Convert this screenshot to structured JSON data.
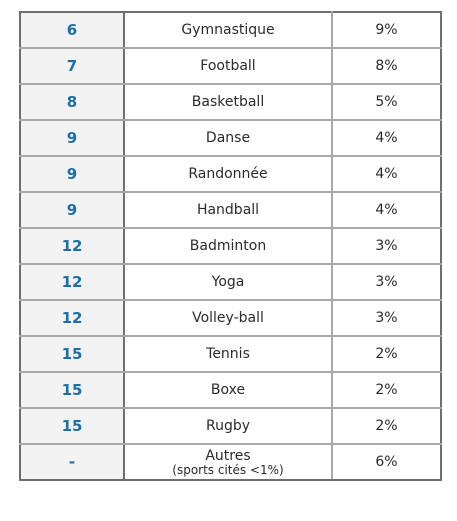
{
  "rows": [
    {
      "rank": "6",
      "sport": "Gymnastique",
      "pct": "9%"
    },
    {
      "rank": "7",
      "sport": "Football",
      "pct": "8%"
    },
    {
      "rank": "8",
      "sport": "Basketball",
      "pct": "5%"
    },
    {
      "rank": "9",
      "sport": "Danse",
      "pct": "4%"
    },
    {
      "rank": "9",
      "sport": "Randonnée",
      "pct": "4%"
    },
    {
      "rank": "9",
      "sport": "Handball",
      "pct": "4%"
    },
    {
      "rank": "12",
      "sport": "Badminton",
      "pct": "3%"
    },
    {
      "rank": "12",
      "sport": "Yoga",
      "pct": "3%"
    },
    {
      "rank": "12",
      "sport": "Volley-ball",
      "pct": "3%"
    },
    {
      "rank": "15",
      "sport": "Tennis",
      "pct": "2%"
    },
    {
      "rank": "15",
      "sport": "Boxe",
      "pct": "2%"
    },
    {
      "rank": "15",
      "sport": "Rugby",
      "pct": "2%"
    }
  ],
  "last_row": {
    "rank": "-",
    "sport": "Autres",
    "note": "(sports cités <1%)",
    "pct": "6%"
  },
  "colors": {
    "rank_text": "#1e6ea7",
    "rank_background": "#f2f2f2",
    "border": "#a9a9a9",
    "outer_border": "#6e6e6e"
  }
}
